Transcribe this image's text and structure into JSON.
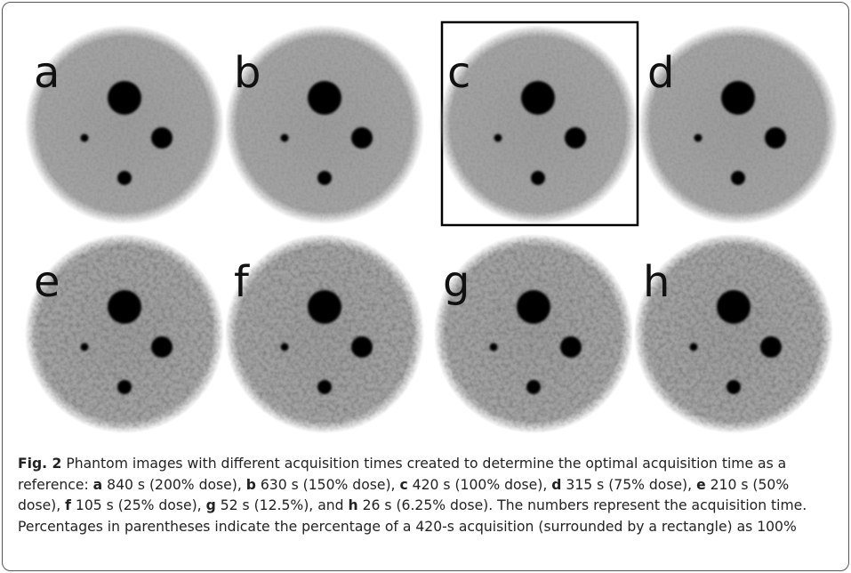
{
  "panels": [
    {
      "label": "a"
    },
    {
      "label": "b"
    },
    {
      "label": "c"
    },
    {
      "label": "d"
    },
    {
      "label": "e"
    },
    {
      "label": "f"
    },
    {
      "label": "g"
    },
    {
      "label": "h"
    }
  ],
  "caption": [
    {
      "text": "Fig. 2",
      "bold": true
    },
    {
      "text": " Phantom images with different acquisition times created to determine the optimal acquisition time as a reference: "
    },
    {
      "text": "a",
      "bold": true
    },
    {
      "text": " 840 s (200% dose), "
    },
    {
      "text": "b",
      "bold": true
    },
    {
      "text": " 630 s (150% dose), "
    },
    {
      "text": "c",
      "bold": true
    },
    {
      "text": " 420 s (100% dose), "
    },
    {
      "text": "d",
      "bold": true
    },
    {
      "text": " 315 s (75% dose), "
    },
    {
      "text": "e",
      "bold": true
    },
    {
      "text": " 210 s (50% dose), "
    },
    {
      "text": "f",
      "bold": true
    },
    {
      "text": " 105 s (25% dose), "
    },
    {
      "text": "g",
      "bold": true
    },
    {
      "text": " 52 s (12.5%), and "
    },
    {
      "text": "h",
      "bold": true
    },
    {
      "text": " 26 s (6.25% dose). The numbers represent the acquisition time. Percentages in parentheses indicate the percentage of a 420-s acquisition (surrounded by a rectangle) as 100%"
    }
  ]
}
